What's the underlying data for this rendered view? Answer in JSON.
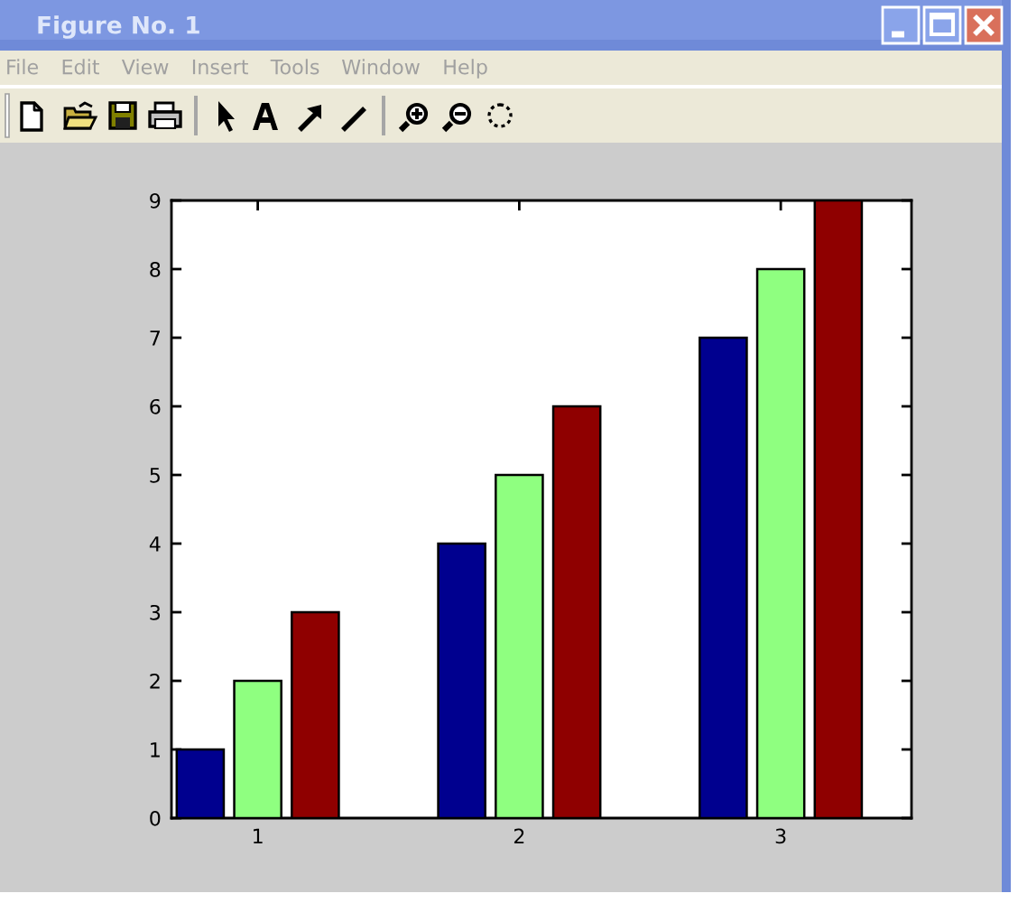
{
  "chart_data": {
    "type": "bar",
    "title": "Figure No. 1",
    "annotations": [
      "File",
      "Edit",
      "View",
      "Insert",
      "Tools",
      "Window",
      "Help"
    ],
    "categories": [
      "1",
      "2",
      "3"
    ],
    "series": [
      {
        "color": "#00008f",
        "values": [
          1,
          4,
          7
        ]
      },
      {
        "color": "#8fff80",
        "values": [
          2,
          5,
          8
        ]
      },
      {
        "color": "#8f0000",
        "values": [
          3,
          6,
          9
        ]
      }
    ],
    "ylim": [
      0,
      9
    ],
    "yticks": [
      0,
      1,
      2,
      3,
      4,
      5,
      6,
      7,
      8,
      9
    ]
  }
}
